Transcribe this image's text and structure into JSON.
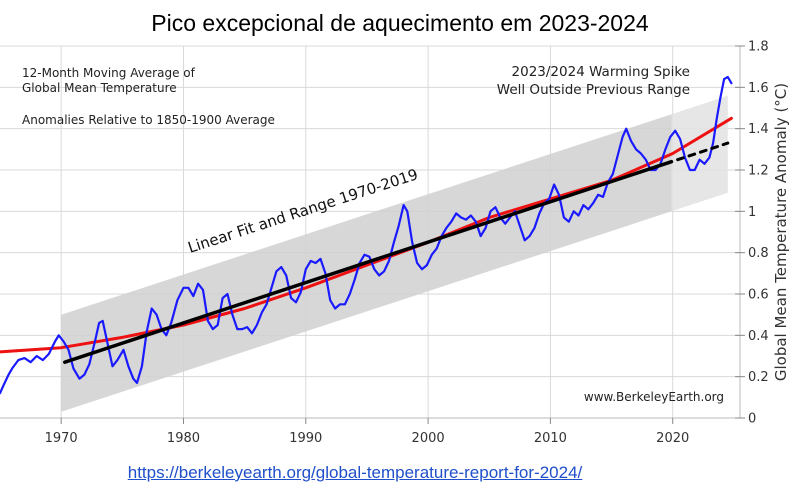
{
  "page": {
    "title": "Pico excepcional de aquecimento em 2023-2024",
    "source_link": "https://berkeleyearth.org/global-temperature-report-for-2024/"
  },
  "chart_data": {
    "type": "line",
    "annotations": {
      "top_left_line1": "12-Month Moving Average of",
      "top_left_line2": "Global Mean Temperature",
      "top_left_line3": "Anomalies Relative to 1850-1900 Average",
      "top_right_line1": "2023/2024 Warming Spike",
      "top_right_line2": "Well Outside Previous Range",
      "fit_label": "Linear Fit and Range 1970-2019",
      "credit": "www.BerkeleyEarth.org"
    },
    "ylabel": "Global Mean Temperature Anomaly (°C)",
    "xlabel": "",
    "xlim": [
      1965,
      2025.5
    ],
    "ylim": [
      0,
      1.8
    ],
    "x_ticks": [
      1970,
      1980,
      1990,
      2000,
      2010,
      2020
    ],
    "y_ticks": [
      0,
      0.2,
      0.4,
      0.6,
      0.8,
      1,
      1.2,
      1.4,
      1.6,
      1.8
    ],
    "y_tick_labels": [
      "0",
      "0.2",
      "0.4",
      "0.6",
      "0.8",
      "1",
      "1.2",
      "1.4",
      "1.6",
      "1.8"
    ],
    "grid": true,
    "colors": {
      "moving_average": "#1a1aff",
      "smooth_trend": "#ee1111",
      "linear_fit": "#000000",
      "range_band": "#d0d0d0",
      "range_band_extension": "#e2e2e2",
      "grid": "#d9d9d9"
    },
    "range_band": {
      "x_start": 1970,
      "x_end": 2019.9,
      "lower_start": 0.03,
      "upper_start": 0.5,
      "lower_end": 1.0,
      "upper_end": 1.47
    },
    "range_band_extension": {
      "x_start": 2019.9,
      "x_end": 2024.5,
      "lower_start": 1.0,
      "upper_start": 1.47,
      "lower_end": 1.09,
      "upper_end": 1.56
    },
    "series": [
      {
        "kind": "moving_average",
        "points": [
          [
            1965.0,
            0.12
          ],
          [
            1965.3,
            0.16
          ],
          [
            1965.7,
            0.21
          ],
          [
            1966.0,
            0.24
          ],
          [
            1966.5,
            0.28
          ],
          [
            1967.0,
            0.29
          ],
          [
            1967.5,
            0.27
          ],
          [
            1968.0,
            0.3
          ],
          [
            1968.5,
            0.28
          ],
          [
            1969.0,
            0.31
          ],
          [
            1969.5,
            0.37
          ],
          [
            1969.8,
            0.4
          ],
          [
            1970.2,
            0.37
          ],
          [
            1970.6,
            0.33
          ],
          [
            1971.0,
            0.24
          ],
          [
            1971.5,
            0.19
          ],
          [
            1971.9,
            0.21
          ],
          [
            1972.3,
            0.26
          ],
          [
            1972.8,
            0.38
          ],
          [
            1973.1,
            0.46
          ],
          [
            1973.4,
            0.47
          ],
          [
            1973.8,
            0.36
          ],
          [
            1974.2,
            0.25
          ],
          [
            1974.6,
            0.28
          ],
          [
            1975.1,
            0.33
          ],
          [
            1975.5,
            0.25
          ],
          [
            1975.9,
            0.19
          ],
          [
            1976.2,
            0.17
          ],
          [
            1976.6,
            0.25
          ],
          [
            1977.0,
            0.42
          ],
          [
            1977.4,
            0.53
          ],
          [
            1977.8,
            0.5
          ],
          [
            1978.2,
            0.43
          ],
          [
            1978.6,
            0.4
          ],
          [
            1979.0,
            0.46
          ],
          [
            1979.5,
            0.57
          ],
          [
            1980.0,
            0.63
          ],
          [
            1980.4,
            0.63
          ],
          [
            1980.8,
            0.59
          ],
          [
            1981.2,
            0.65
          ],
          [
            1981.6,
            0.62
          ],
          [
            1982.0,
            0.47
          ],
          [
            1982.4,
            0.43
          ],
          [
            1982.8,
            0.45
          ],
          [
            1983.2,
            0.58
          ],
          [
            1983.6,
            0.6
          ],
          [
            1984.0,
            0.5
          ],
          [
            1984.4,
            0.43
          ],
          [
            1984.8,
            0.43
          ],
          [
            1985.2,
            0.44
          ],
          [
            1985.6,
            0.41
          ],
          [
            1986.0,
            0.45
          ],
          [
            1986.4,
            0.51
          ],
          [
            1986.8,
            0.55
          ],
          [
            1987.2,
            0.63
          ],
          [
            1987.6,
            0.71
          ],
          [
            1988.0,
            0.73
          ],
          [
            1988.4,
            0.69
          ],
          [
            1988.8,
            0.58
          ],
          [
            1989.2,
            0.56
          ],
          [
            1989.6,
            0.61
          ],
          [
            1990.0,
            0.72
          ],
          [
            1990.4,
            0.76
          ],
          [
            1990.8,
            0.75
          ],
          [
            1991.2,
            0.77
          ],
          [
            1991.6,
            0.7
          ],
          [
            1992.0,
            0.57
          ],
          [
            1992.4,
            0.53
          ],
          [
            1992.8,
            0.55
          ],
          [
            1993.2,
            0.55
          ],
          [
            1993.6,
            0.6
          ],
          [
            1994.0,
            0.67
          ],
          [
            1994.4,
            0.75
          ],
          [
            1994.8,
            0.79
          ],
          [
            1995.2,
            0.78
          ],
          [
            1995.6,
            0.72
          ],
          [
            1996.0,
            0.69
          ],
          [
            1996.4,
            0.71
          ],
          [
            1996.8,
            0.76
          ],
          [
            1997.2,
            0.85
          ],
          [
            1997.6,
            0.93
          ],
          [
            1998.0,
            1.03
          ],
          [
            1998.3,
            1.0
          ],
          [
            1998.7,
            0.85
          ],
          [
            1999.1,
            0.75
          ],
          [
            1999.5,
            0.72
          ],
          [
            1999.9,
            0.74
          ],
          [
            2000.3,
            0.79
          ],
          [
            2000.7,
            0.82
          ],
          [
            2001.1,
            0.88
          ],
          [
            2001.5,
            0.92
          ],
          [
            2001.9,
            0.95
          ],
          [
            2002.3,
            0.99
          ],
          [
            2002.7,
            0.97
          ],
          [
            2003.1,
            0.96
          ],
          [
            2003.5,
            0.98
          ],
          [
            2003.9,
            0.95
          ],
          [
            2004.3,
            0.88
          ],
          [
            2004.7,
            0.92
          ],
          [
            2005.1,
            1.0
          ],
          [
            2005.5,
            1.02
          ],
          [
            2005.9,
            0.97
          ],
          [
            2006.3,
            0.94
          ],
          [
            2006.7,
            0.97
          ],
          [
            2007.1,
            1.0
          ],
          [
            2007.5,
            0.93
          ],
          [
            2007.9,
            0.86
          ],
          [
            2008.3,
            0.88
          ],
          [
            2008.7,
            0.92
          ],
          [
            2009.1,
            0.99
          ],
          [
            2009.5,
            1.04
          ],
          [
            2009.9,
            1.06
          ],
          [
            2010.3,
            1.13
          ],
          [
            2010.7,
            1.08
          ],
          [
            2011.1,
            0.97
          ],
          [
            2011.5,
            0.95
          ],
          [
            2011.9,
            1.0
          ],
          [
            2012.3,
            0.98
          ],
          [
            2012.7,
            1.03
          ],
          [
            2013.1,
            1.01
          ],
          [
            2013.5,
            1.04
          ],
          [
            2013.9,
            1.08
          ],
          [
            2014.3,
            1.07
          ],
          [
            2014.7,
            1.14
          ],
          [
            2015.1,
            1.18
          ],
          [
            2015.5,
            1.27
          ],
          [
            2015.9,
            1.36
          ],
          [
            2016.2,
            1.4
          ],
          [
            2016.6,
            1.34
          ],
          [
            2017.0,
            1.3
          ],
          [
            2017.4,
            1.28
          ],
          [
            2017.8,
            1.25
          ],
          [
            2018.2,
            1.2
          ],
          [
            2018.6,
            1.2
          ],
          [
            2019.0,
            1.23
          ],
          [
            2019.4,
            1.3
          ],
          [
            2019.8,
            1.36
          ],
          [
            2020.2,
            1.39
          ],
          [
            2020.6,
            1.35
          ],
          [
            2021.0,
            1.26
          ],
          [
            2021.4,
            1.2
          ],
          [
            2021.8,
            1.2
          ],
          [
            2022.2,
            1.25
          ],
          [
            2022.6,
            1.23
          ],
          [
            2023.0,
            1.26
          ],
          [
            2023.3,
            1.33
          ],
          [
            2023.6,
            1.45
          ],
          [
            2023.9,
            1.55
          ],
          [
            2024.2,
            1.64
          ],
          [
            2024.5,
            1.65
          ],
          [
            2024.8,
            1.62
          ]
        ]
      },
      {
        "kind": "smooth_trend",
        "points": [
          [
            1965.0,
            0.32
          ],
          [
            1970.0,
            0.34
          ],
          [
            1975.0,
            0.39
          ],
          [
            1980.0,
            0.45
          ],
          [
            1985.0,
            0.53
          ],
          [
            1990.0,
            0.63
          ],
          [
            1995.0,
            0.74
          ],
          [
            2000.0,
            0.85
          ],
          [
            2005.0,
            0.97
          ],
          [
            2010.0,
            1.06
          ],
          [
            2015.0,
            1.15
          ],
          [
            2020.0,
            1.28
          ],
          [
            2024.8,
            1.45
          ]
        ]
      },
      {
        "kind": "linear_fit",
        "points": [
          [
            1970.3,
            0.27
          ],
          [
            2019.9,
            1.24
          ]
        ]
      },
      {
        "kind": "linear_fit_extension",
        "points": [
          [
            2020.4,
            1.25
          ],
          [
            2024.5,
            1.33
          ]
        ]
      }
    ]
  }
}
